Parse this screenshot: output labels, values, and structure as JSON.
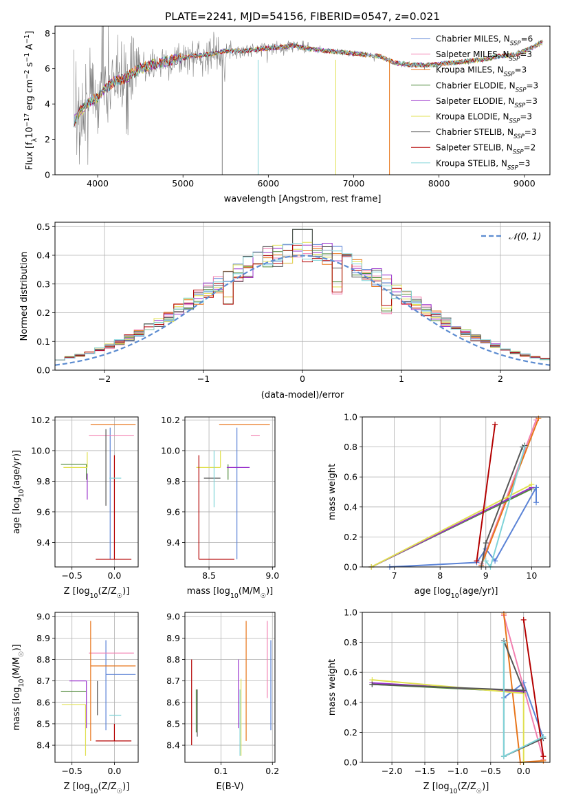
{
  "figure_title": "PLATE=2241, MJD=54156, FIBERID=0547, z=0.021",
  "colors": {
    "chabrier_miles": "#5b83d6",
    "salpeter_miles": "#f27fb0",
    "kroupa_miles": "#e8751a",
    "chabrier_elodie": "#4f8a3a",
    "salpeter_elodie": "#9932cc",
    "kroupa_elodie": "#e0e050",
    "chabrier_stelib": "#555555",
    "salpeter_stelib": "#b30000",
    "kroupa_stelib": "#7fd3d8",
    "data": "#808080",
    "normal": "#5b8bd0"
  },
  "chart_data": [
    {
      "id": "spectrum",
      "type": "line",
      "title": "PLATE=2241, MJD=54156, FIBERID=0547, z=0.021",
      "xlabel": "wavelength [Angstrom, rest frame]",
      "ylabel_parts": [
        "Flux [f",
        "λ",
        "10",
        "−17",
        " erg cm",
        "−2",
        " s",
        "−1",
        " A",
        "−1",
        "]"
      ],
      "xlim": [
        3500,
        9300
      ],
      "ylim": [
        0,
        8.4
      ],
      "xticks": [
        4000,
        5000,
        6000,
        7000,
        8000,
        9000
      ],
      "yticks": [
        0,
        2,
        4,
        6,
        8
      ],
      "legend_position": "top-right",
      "continuum": {
        "x": [
          3720,
          3800,
          3900,
          4000,
          4100,
          4200,
          4300,
          4400,
          4500,
          4700,
          4900,
          5100,
          5300,
          5500,
          5700,
          5900,
          6100,
          6300,
          6500,
          6700,
          6900,
          7100,
          7300,
          7500,
          7700,
          7900,
          8100,
          8300,
          8500,
          8700,
          8900,
          9100,
          9200
        ],
        "y": [
          3.0,
          3.6,
          4.1,
          4.4,
          4.9,
          5.3,
          5.4,
          5.7,
          6.0,
          6.3,
          6.5,
          6.7,
          6.8,
          7.0,
          7.0,
          7.1,
          7.2,
          7.3,
          7.1,
          7.0,
          6.9,
          6.8,
          6.7,
          6.3,
          6.2,
          6.2,
          6.3,
          6.4,
          6.5,
          6.7,
          6.8,
          7.2,
          7.5
        ]
      },
      "legend": [
        {
          "key": "chabrier_miles",
          "prefix": "Chabrier MILES, N",
          "n": 6
        },
        {
          "key": "salpeter_miles",
          "prefix": "Salpeter MILES, N",
          "n": 3
        },
        {
          "key": "kroupa_miles",
          "prefix": "Kroupa MILES, N",
          "n": 3
        },
        {
          "key": "chabrier_elodie",
          "prefix": "Chabrier ELODIE, N",
          "n": 3
        },
        {
          "key": "salpeter_elodie",
          "prefix": "Salpeter ELODIE, N",
          "n": 3
        },
        {
          "key": "kroupa_elodie",
          "prefix": "Kroupa ELODIE, N",
          "n": 3
        },
        {
          "key": "chabrier_stelib",
          "prefix": "Chabrier STELIB, N",
          "n": 3
        },
        {
          "key": "salpeter_stelib",
          "prefix": "Salpeter STELIB, N",
          "n": 2
        },
        {
          "key": "kroupa_stelib",
          "prefix": "Kroupa STELIB, N",
          "n": 3
        }
      ],
      "legend_sub": "SSP"
    },
    {
      "id": "residuals",
      "type": "histogram",
      "xlabel": "(data-model)/error",
      "ylabel": "Normed distribution",
      "xlim": [
        -2.5,
        2.5
      ],
      "ylim": [
        0,
        0.515
      ],
      "xticks": [
        -2,
        -1,
        0,
        1,
        2
      ],
      "yticks": [
        0.0,
        0.1,
        0.2,
        0.3,
        0.4,
        0.5
      ],
      "legend_label": "𝒩(0, 1)",
      "legend_position": "top-right",
      "bin_width": 0.1,
      "bin_start": -2.5,
      "curve": {
        "name": "𝒩(0, 1)",
        "mu": 0,
        "sigma": 1
      }
    },
    {
      "id": "age_vs_z",
      "type": "errorbar",
      "xlabel_parts": [
        "Z [log",
        "10",
        "(Z/Z",
        "☉",
        ")]"
      ],
      "ylabel_parts": [
        "age  [log",
        "10",
        "(age/yr)]"
      ],
      "xlim": [
        -0.7,
        0.28
      ],
      "ylim": [
        9.24,
        10.22
      ],
      "xticks": [
        -0.5,
        0.0
      ],
      "yticks": [
        9.4,
        9.6,
        9.8,
        10.0,
        10.2
      ],
      "points": [
        {
          "key": "chabrier_miles",
          "x": -0.05,
          "xerr": [
            0.0,
            0.0
          ],
          "y": 9.72,
          "yerr": [
            0.43,
            0.43
          ]
        },
        {
          "key": "salpeter_miles",
          "x": -0.1,
          "xerr": [
            0.2,
            0.33
          ],
          "y": 10.1,
          "yerr": [
            0.0,
            0.0
          ]
        },
        {
          "key": "kroupa_miles",
          "x": -0.28,
          "xerr": [
            0.0,
            0.53
          ],
          "y": 10.17,
          "yerr": [
            0.0,
            0.0
          ]
        },
        {
          "key": "chabrier_elodie",
          "x": -0.33,
          "xerr": [
            0.3,
            0.0
          ],
          "y": 9.91,
          "yerr": [
            0.1,
            0.0
          ]
        },
        {
          "key": "salpeter_elodie",
          "x": -0.32,
          "xerr": [
            0.0,
            0.0
          ],
          "y": 9.85,
          "yerr": [
            0.17,
            0.0
          ]
        },
        {
          "key": "kroupa_elodie",
          "x": -0.32,
          "xerr": [
            0.28,
            0.0
          ],
          "y": 9.89,
          "yerr": [
            0.0,
            0.1
          ]
        },
        {
          "key": "chabrier_stelib",
          "x": -0.1,
          "xerr": [
            0.0,
            0.0
          ],
          "y": 9.82,
          "yerr": [
            0.18,
            0.32
          ]
        },
        {
          "key": "salpeter_stelib",
          "x": 0.0,
          "xerr": [
            0.22,
            0.2
          ],
          "y": 9.29,
          "yerr": [
            0.0,
            0.68
          ]
        },
        {
          "key": "kroupa_stelib",
          "x": -0.06,
          "xerr": [
            0.0,
            0.14
          ],
          "y": 9.82,
          "yerr": [
            0.0,
            0.0
          ]
        }
      ]
    },
    {
      "id": "age_vs_mass",
      "type": "errorbar",
      "xlabel_parts": [
        "mass [log",
        "10",
        "(M/M",
        "☉",
        ")]"
      ],
      "xlim": [
        8.31,
        9.02
      ],
      "ylim": [
        9.24,
        10.22
      ],
      "xticks": [
        8.5,
        9.0
      ],
      "yticks": [
        9.4,
        9.6,
        9.8,
        10.0,
        10.2
      ],
      "points": [
        {
          "key": "chabrier_miles",
          "x": 8.72,
          "xerr": [
            0.0,
            0.0
          ],
          "y": 9.72,
          "yerr": [
            0.43,
            0.43
          ]
        },
        {
          "key": "salpeter_miles",
          "x": 8.83,
          "xerr": [
            0.0,
            0.07
          ],
          "y": 10.1,
          "yerr": [
            0.0,
            0.0
          ]
        },
        {
          "key": "kroupa_miles",
          "x": 8.77,
          "xerr": [
            0.19,
            0.21
          ],
          "y": 10.17,
          "yerr": [
            0.0,
            0.0
          ]
        },
        {
          "key": "chabrier_elodie",
          "x": 8.65,
          "xerr": [
            0.0,
            0.0
          ],
          "y": 9.91,
          "yerr": [
            0.1,
            0.0
          ]
        },
        {
          "key": "salpeter_elodie",
          "x": 8.7,
          "xerr": [
            0.06,
            0.12
          ],
          "y": 9.89,
          "yerr": [
            0.0,
            0.0
          ]
        },
        {
          "key": "kroupa_elodie",
          "x": 8.59,
          "xerr": [
            0.19,
            0.0
          ],
          "y": 9.89,
          "yerr": [
            0.0,
            0.11
          ]
        },
        {
          "key": "chabrier_stelib",
          "x": 8.54,
          "xerr": [
            0.08,
            0.05
          ],
          "y": 9.82,
          "yerr": [
            0.0,
            0.0
          ]
        },
        {
          "key": "salpeter_stelib",
          "x": 8.42,
          "xerr": [
            0.0,
            0.28
          ],
          "y": 9.29,
          "yerr": [
            0.0,
            0.68
          ]
        },
        {
          "key": "kroupa_stelib",
          "x": 8.54,
          "xerr": [
            0.0,
            0.0
          ],
          "y": 9.82,
          "yerr": [
            0.19,
            0.18
          ]
        }
      ]
    },
    {
      "id": "weight_vs_age",
      "type": "line",
      "xlabel_parts": [
        "age  [log",
        "10",
        "(age/yr)]"
      ],
      "ylabel": "mass weight",
      "xlim": [
        6.3,
        10.4
      ],
      "ylim": [
        0,
        1.0
      ],
      "xticks": [
        7,
        8,
        9,
        10
      ],
      "yticks": [
        0.0,
        0.2,
        0.4,
        0.6,
        0.8,
        1.0
      ],
      "series": [
        {
          "key": "chabrier_miles",
          "x": [
            6.9,
            8.8,
            9.0,
            9.2,
            10.1,
            10.1
          ],
          "y": [
            0.0,
            0.03,
            0.12,
            0.04,
            0.53,
            0.43
          ]
        },
        {
          "key": "salpeter_miles",
          "x": [
            8.9,
            10.1
          ],
          "y": [
            0.02,
            0.98
          ]
        },
        {
          "key": "kroupa_miles",
          "x": [
            8.9,
            10.15
          ],
          "y": [
            0.01,
            0.99
          ]
        },
        {
          "key": "chabrier_elodie",
          "x": [
            6.5,
            10.0
          ],
          "y": [
            0.0,
            0.52
          ]
        },
        {
          "key": "salpeter_elodie",
          "x": [
            6.5,
            10.0
          ],
          "y": [
            0.0,
            0.53
          ]
        },
        {
          "key": "kroupa_elodie",
          "x": [
            6.5,
            10.0
          ],
          "y": [
            0.0,
            0.55
          ]
        },
        {
          "key": "chabrier_stelib",
          "x": [
            8.9,
            9.0,
            9.8,
            9.85
          ],
          "y": [
            0.0,
            0.16,
            0.8,
            0.81
          ]
        },
        {
          "key": "salpeter_stelib",
          "x": [
            8.8,
            9.2
          ],
          "y": [
            0.04,
            0.95
          ]
        },
        {
          "key": "kroupa_stelib",
          "x": [
            9.0,
            9.1,
            9.85
          ],
          "y": [
            0.04,
            0.0,
            0.8
          ]
        }
      ]
    },
    {
      "id": "mass_vs_z",
      "type": "errorbar",
      "xlabel_parts": [
        "Z [log",
        "10",
        "(Z/Z",
        "☉",
        ")]"
      ],
      "ylabel_parts": [
        "mass [log",
        "10",
        "(M/M",
        "☉",
        ")]"
      ],
      "xlim": [
        -0.7,
        0.28
      ],
      "ylim": [
        8.32,
        9.02
      ],
      "xticks": [
        -0.5,
        0.0
      ],
      "yticks": [
        8.4,
        8.5,
        8.6,
        8.7,
        8.8,
        8.9,
        9.0
      ],
      "points": [
        {
          "key": "chabrier_miles",
          "x": -0.1,
          "xerr": [
            0.0,
            0.35
          ],
          "y": 8.73,
          "yerr": [
            0.26,
            0.16
          ]
        },
        {
          "key": "salpeter_miles",
          "x": -0.1,
          "xerr": [
            0.2,
            0.33
          ],
          "y": 8.83,
          "yerr": [
            0.0,
            0.0
          ]
        },
        {
          "key": "kroupa_miles",
          "x": -0.28,
          "xerr": [
            0.0,
            0.53
          ],
          "y": 8.77,
          "yerr": [
            0.35,
            0.21
          ]
        },
        {
          "key": "chabrier_elodie",
          "x": -0.33,
          "xerr": [
            0.3,
            0.0
          ],
          "y": 8.65,
          "yerr": [
            0.0,
            0.0
          ]
        },
        {
          "key": "salpeter_elodie",
          "x": -0.33,
          "xerr": [
            0.2,
            0.0
          ],
          "y": 8.7,
          "yerr": [
            0.22,
            0.0
          ]
        },
        {
          "key": "kroupa_elodie",
          "x": -0.34,
          "xerr": [
            0.28,
            0.0
          ],
          "y": 8.59,
          "yerr": [
            0.24,
            0.0
          ]
        },
        {
          "key": "chabrier_stelib",
          "x": -0.2,
          "xerr": [
            0.0,
            0.0
          ],
          "y": 8.54,
          "yerr": [
            0.0,
            0.16
          ]
        },
        {
          "key": "salpeter_stelib",
          "x": 0.0,
          "xerr": [
            0.22,
            0.2
          ],
          "y": 8.42,
          "yerr": [
            0.0,
            0.08
          ]
        },
        {
          "key": "kroupa_stelib",
          "x": -0.06,
          "xerr": [
            0.0,
            0.14
          ],
          "y": 8.54,
          "yerr": [
            0.0,
            0.0
          ]
        }
      ]
    },
    {
      "id": "mass_vs_ebv",
      "type": "errorbar",
      "xlabel": "E(B-V)",
      "xlim": [
        0.03,
        0.205
      ],
      "ylim": [
        8.32,
        9.02
      ],
      "xticks": [
        0.1,
        0.2
      ],
      "yticks": [
        8.4,
        8.5,
        8.6,
        8.7,
        8.8,
        8.9,
        9.0
      ],
      "points": [
        {
          "key": "chabrier_miles",
          "x": 0.197,
          "xerr": [
            0.0,
            0.0
          ],
          "y": 8.73,
          "yerr": [
            0.26,
            0.16
          ]
        },
        {
          "key": "salpeter_miles",
          "x": 0.19,
          "xerr": [
            0.0,
            0.0
          ],
          "y": 8.83,
          "yerr": [
            0.21,
            0.15
          ]
        },
        {
          "key": "kroupa_miles",
          "x": 0.149,
          "xerr": [
            0.0,
            0.0
          ],
          "y": 8.77,
          "yerr": [
            0.35,
            0.21
          ]
        },
        {
          "key": "chabrier_elodie",
          "x": 0.052,
          "xerr": [
            0.0,
            0.0
          ],
          "y": 8.6,
          "yerr": [
            0.14,
            0.06
          ]
        },
        {
          "key": "salpeter_elodie",
          "x": 0.134,
          "xerr": [
            0.0,
            0.0
          ],
          "y": 8.7,
          "yerr": [
            0.22,
            0.1
          ]
        },
        {
          "key": "kroupa_elodie",
          "x": 0.139,
          "xerr": [
            0.0,
            0.0
          ],
          "y": 8.59,
          "yerr": [
            0.24,
            0.12
          ]
        },
        {
          "key": "chabrier_stelib",
          "x": 0.054,
          "xerr": [
            0.0,
            0.0
          ],
          "y": 8.54,
          "yerr": [
            0.1,
            0.12
          ]
        },
        {
          "key": "salpeter_stelib",
          "x": 0.043,
          "xerr": [
            0.0,
            0.0
          ],
          "y": 8.6,
          "yerr": [
            0.2,
            0.2
          ]
        },
        {
          "key": "kroupa_stelib",
          "x": 0.137,
          "xerr": [
            0.0,
            0.0
          ],
          "y": 8.54,
          "yerr": [
            0.19,
            0.12
          ]
        }
      ]
    },
    {
      "id": "weight_vs_z",
      "type": "line",
      "xlabel_parts": [
        "Z [log",
        "10",
        "(Z/Z",
        "☉",
        ")]"
      ],
      "ylabel": "mass weight",
      "xlim": [
        -2.45,
        0.4
      ],
      "ylim": [
        0,
        1.0
      ],
      "xticks": [
        -2.0,
        -1.5,
        -1.0,
        -0.5,
        0.0
      ],
      "yticks": [
        0.0,
        0.2,
        0.4,
        0.6,
        0.8,
        1.0
      ],
      "series": [
        {
          "key": "chabrier_miles",
          "x": [
            -0.3,
            0.0,
            0.3
          ],
          "y": [
            0.43,
            0.53,
            0.16
          ]
        },
        {
          "key": "salpeter_miles",
          "x": [
            -0.3,
            0.3
          ],
          "y": [
            0.98,
            0.02
          ]
        },
        {
          "key": "kroupa_miles",
          "x": [
            -0.3,
            -0.05,
            0.3
          ],
          "y": [
            0.99,
            0.0,
            0.01
          ]
        },
        {
          "key": "chabrier_elodie",
          "x": [
            -2.3,
            0.0
          ],
          "y": [
            0.52,
            0.47
          ]
        },
        {
          "key": "salpeter_elodie",
          "x": [
            -2.3,
            0.0
          ],
          "y": [
            0.53,
            0.47
          ]
        },
        {
          "key": "kroupa_elodie",
          "x": [
            -2.3,
            0.0,
            0.0
          ],
          "y": [
            0.55,
            0.46,
            0.0
          ]
        },
        {
          "key": "chabrier_stelib",
          "x": [
            -2.3,
            0.0,
            -0.3,
            -0.3,
            0.3
          ],
          "y": [
            0.52,
            0.48,
            0.81,
            0.04,
            0.16
          ]
        },
        {
          "key": "salpeter_stelib",
          "x": [
            0.0,
            0.3
          ],
          "y": [
            0.95,
            0.04
          ]
        },
        {
          "key": "kroupa_stelib",
          "x": [
            -0.3,
            -0.3,
            0.3
          ],
          "y": [
            0.8,
            0.04,
            0.17
          ]
        }
      ]
    }
  ]
}
